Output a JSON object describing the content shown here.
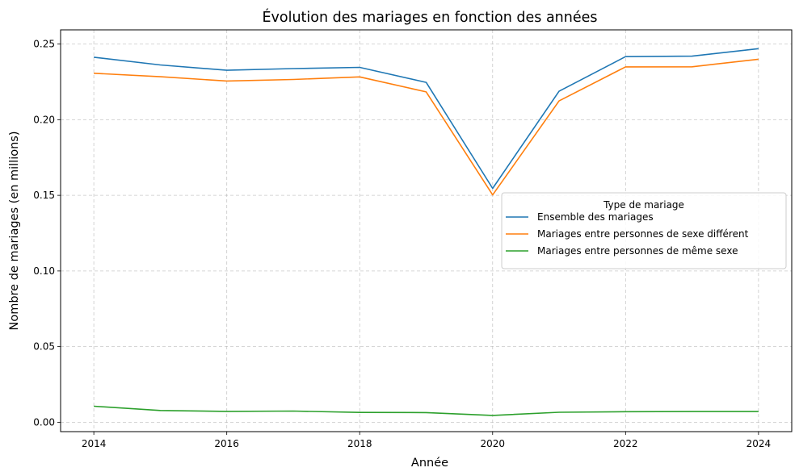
{
  "chart_data": {
    "type": "line",
    "title": "Évolution des mariages en fonction des années",
    "xlabel": "Année",
    "ylabel": "Nombre de mariages (en millions)",
    "x": [
      2014,
      2015,
      2016,
      2017,
      2018,
      2019,
      2020,
      2021,
      2022,
      2023,
      2024
    ],
    "xticks": [
      2014,
      2016,
      2018,
      2020,
      2022,
      2024
    ],
    "xtick_labels": [
      "2014",
      "2016",
      "2018",
      "2020",
      "2022",
      "2024"
    ],
    "yticks": [
      0.0,
      0.05,
      0.1,
      0.15,
      0.2,
      0.25
    ],
    "ytick_labels": [
      "0.00",
      "0.05",
      "0.10",
      "0.15",
      "0.20",
      "0.25"
    ],
    "xlim": [
      2013.5,
      2024.5
    ],
    "ylim": [
      -0.0062,
      0.2594
    ],
    "grid": true,
    "legend_title": "Type de mariage",
    "legend_position": "center-right",
    "series": [
      {
        "name": "Ensemble des mariages",
        "color": "#1f77b4",
        "values": [
          0.2413,
          0.2362,
          0.2327,
          0.2338,
          0.2346,
          0.2247,
          0.1546,
          0.2188,
          0.2417,
          0.242,
          0.247
        ]
      },
      {
        "name": "Mariages entre personnes de sexe différent",
        "color": "#ff7f0e",
        "values": [
          0.2307,
          0.2284,
          0.2256,
          0.2266,
          0.2283,
          0.2184,
          0.1503,
          0.2124,
          0.2349,
          0.235,
          0.24
        ]
      },
      {
        "name": "Mariages entre personnes de même sexe",
        "color": "#2ca02c",
        "values": [
          0.0106,
          0.0078,
          0.0072,
          0.0074,
          0.0065,
          0.0064,
          0.0045,
          0.0066,
          0.007,
          0.0071,
          0.0071
        ]
      }
    ]
  }
}
